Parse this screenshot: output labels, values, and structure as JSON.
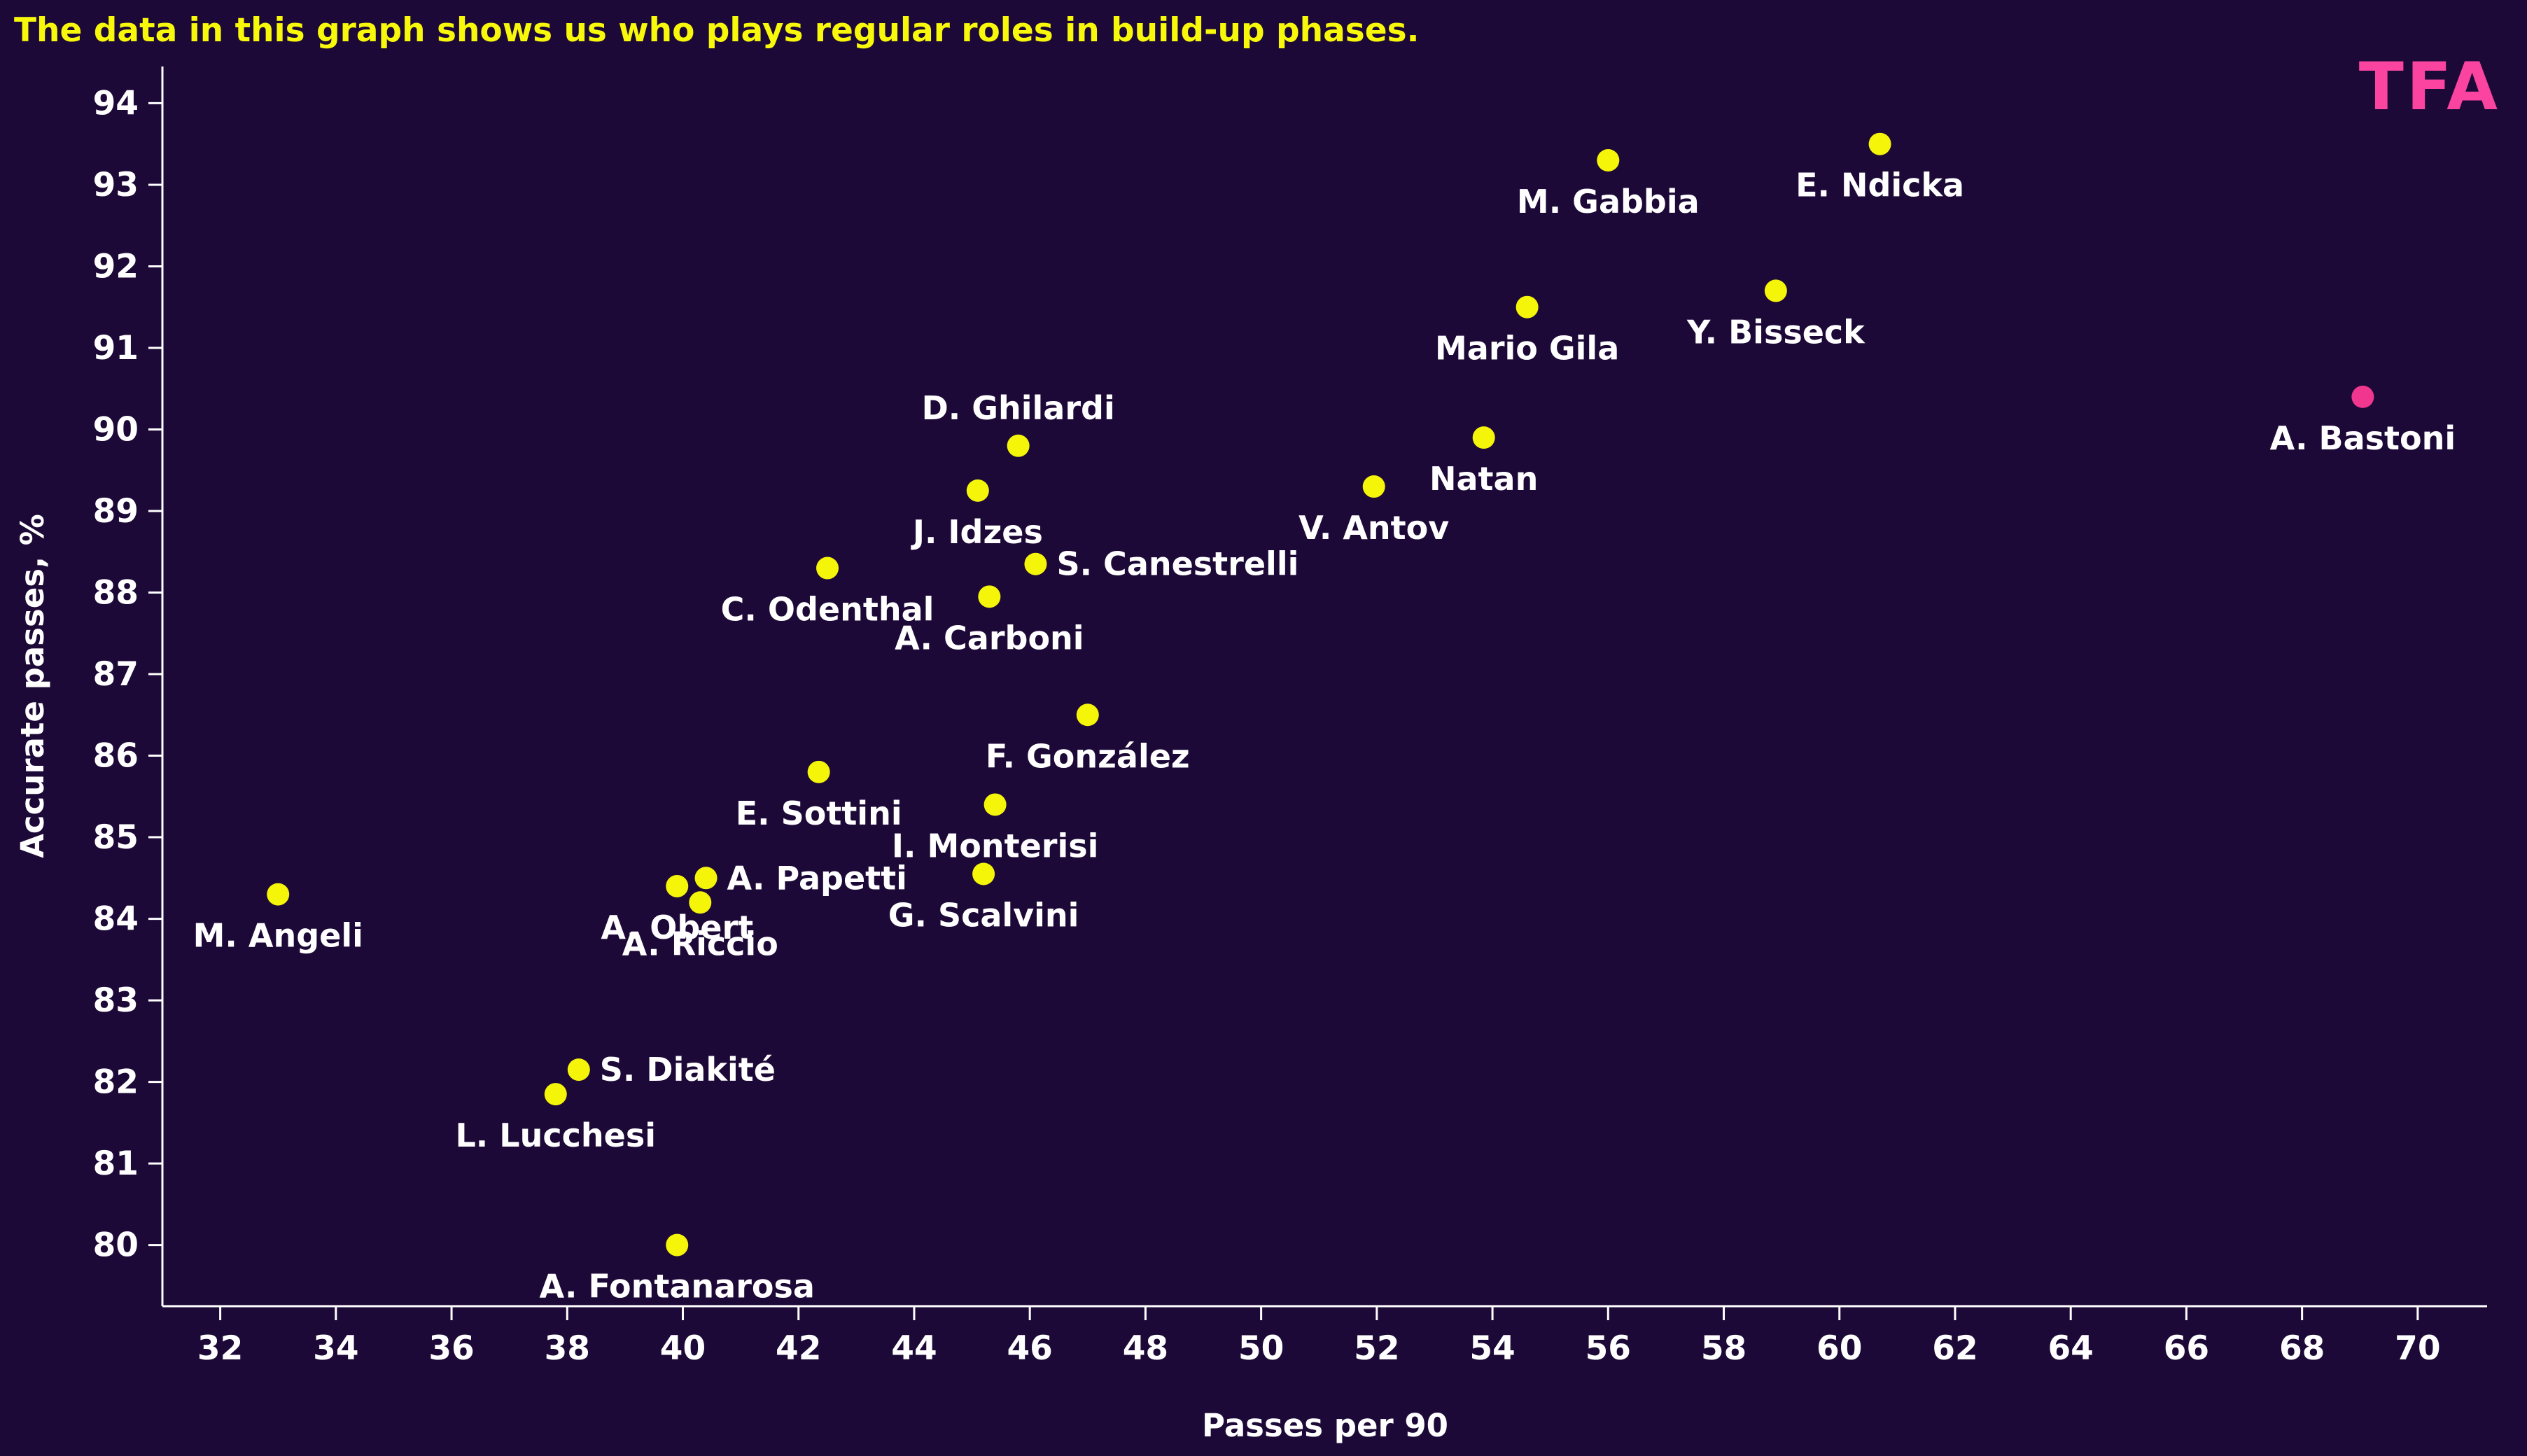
{
  "title": {
    "text": "The data in this graph shows us who plays regular roles in build-up phases.",
    "color": "#f8f80b"
  },
  "logo": {
    "text": "TFA",
    "color": "#fb44a0"
  },
  "background_color": "#1d0937",
  "chart_data": {
    "type": "scatter",
    "title": "The data in this graph shows us who plays regular roles in build-up phases.",
    "xlabel": "Passes per 90",
    "ylabel": "Accurate passes, %",
    "xlim": [
      31.0,
      71.2
    ],
    "ylim": [
      79.25,
      94.45
    ],
    "x_ticks": [
      32,
      34,
      36,
      38,
      40,
      42,
      44,
      46,
      48,
      50,
      52,
      54,
      56,
      58,
      60,
      62,
      64,
      66,
      68,
      70
    ],
    "y_ticks": [
      80,
      81,
      82,
      83,
      84,
      85,
      86,
      87,
      88,
      89,
      90,
      91,
      92,
      93,
      94
    ],
    "grid": false,
    "legend": null,
    "axis_color": "#ffffff",
    "default_point_color": "#f5f50a",
    "highlight_point_color": "#f0368f",
    "points": [
      {
        "name": "M. Angeli",
        "x": 33.0,
        "y": 84.3,
        "color": "default",
        "label_pos": "below"
      },
      {
        "name": "L. Lucchesi",
        "x": 37.8,
        "y": 81.85,
        "color": "default",
        "label_pos": "below"
      },
      {
        "name": "S. Diakité",
        "x": 38.2,
        "y": 82.15,
        "color": "default",
        "label_pos": "right"
      },
      {
        "name": "A. Fontanarosa",
        "x": 39.9,
        "y": 80.0,
        "color": "default",
        "label_pos": "below"
      },
      {
        "name": "A. Obert",
        "x": 39.9,
        "y": 84.4,
        "color": "default",
        "label_pos": "below"
      },
      {
        "name": "A. Riccio",
        "x": 40.3,
        "y": 84.2,
        "color": "default",
        "label_pos": "below"
      },
      {
        "name": "A. Papetti",
        "x": 40.4,
        "y": 84.5,
        "color": "default",
        "label_pos": "right"
      },
      {
        "name": "E. Sottini",
        "x": 42.35,
        "y": 85.8,
        "color": "default",
        "label_pos": "below"
      },
      {
        "name": "C. Odenthal",
        "x": 42.5,
        "y": 88.3,
        "color": "default",
        "label_pos": "below"
      },
      {
        "name": "J. Idzes",
        "x": 45.1,
        "y": 89.25,
        "color": "default",
        "label_pos": "below"
      },
      {
        "name": "G. Scalvini",
        "x": 45.2,
        "y": 84.55,
        "color": "default",
        "label_pos": "below"
      },
      {
        "name": "A. Carboni",
        "x": 45.3,
        "y": 87.95,
        "color": "default",
        "label_pos": "below"
      },
      {
        "name": "I. Monterisi",
        "x": 45.4,
        "y": 85.4,
        "color": "default",
        "label_pos": "below"
      },
      {
        "name": "D. Ghilardi",
        "x": 45.8,
        "y": 89.8,
        "color": "default",
        "label_pos": "above"
      },
      {
        "name": "S. Canestrelli",
        "x": 46.1,
        "y": 88.35,
        "color": "default",
        "label_pos": "right"
      },
      {
        "name": "F. González",
        "x": 47.0,
        "y": 86.5,
        "color": "default",
        "label_pos": "below"
      },
      {
        "name": "V. Antov",
        "x": 51.95,
        "y": 89.3,
        "color": "default",
        "label_pos": "below"
      },
      {
        "name": "Natan",
        "x": 53.85,
        "y": 89.9,
        "color": "default",
        "label_pos": "below"
      },
      {
        "name": "Mario Gila",
        "x": 54.6,
        "y": 91.5,
        "color": "default",
        "label_pos": "below"
      },
      {
        "name": "M. Gabbia",
        "x": 56.0,
        "y": 93.3,
        "color": "default",
        "label_pos": "below"
      },
      {
        "name": "Y. Bisseck",
        "x": 58.9,
        "y": 91.7,
        "color": "default",
        "label_pos": "below"
      },
      {
        "name": "E. Ndicka",
        "x": 60.7,
        "y": 93.5,
        "color": "default",
        "label_pos": "below"
      },
      {
        "name": "A. Bastoni",
        "x": 69.05,
        "y": 90.4,
        "color": "highlight",
        "label_pos": "below"
      }
    ]
  }
}
